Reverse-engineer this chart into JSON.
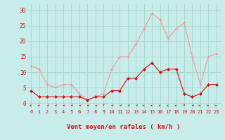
{
  "hours": [
    0,
    1,
    2,
    3,
    4,
    5,
    6,
    7,
    8,
    9,
    10,
    11,
    12,
    13,
    14,
    15,
    16,
    17,
    18,
    19,
    20,
    21,
    22,
    23
  ],
  "wind_avg": [
    4,
    2,
    2,
    2,
    2,
    2,
    2,
    1,
    2,
    2,
    4,
    4,
    8,
    8,
    11,
    13,
    10,
    11,
    11,
    3,
    2,
    3,
    6,
    6
  ],
  "wind_gust": [
    12,
    11,
    6,
    5,
    6,
    6,
    3,
    1,
    2,
    3,
    11,
    15,
    15,
    19,
    24,
    29,
    27,
    21,
    24,
    26,
    15,
    6,
    15,
    16
  ],
  "bg_color": "#c8ecea",
  "grid_color": "#a8d8d0",
  "line_avg_color": "#cc1111",
  "line_gust_color": "#ee9999",
  "xlabel": "Vent moyen/en rafales ( km/h )",
  "xlabel_color": "#cc1111",
  "tick_color": "#cc1111",
  "ylim": [
    -2,
    32
  ],
  "yticks": [
    0,
    5,
    10,
    15,
    20,
    25,
    30
  ],
  "arrow_color": "#cc1111",
  "spine_color": "#888888"
}
